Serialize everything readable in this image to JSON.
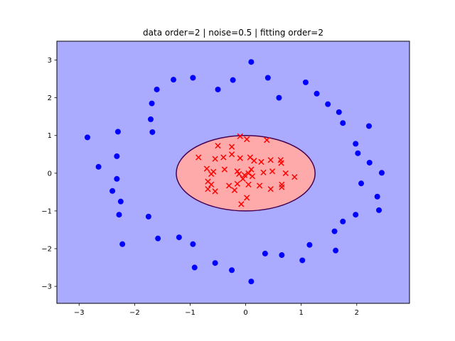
{
  "chart_data": {
    "type": "scatter",
    "title": "data order=2 | noise=0.5 | fitting order=2",
    "xlabel": "",
    "ylabel": "",
    "xlim": [
      -3.4,
      2.95
    ],
    "ylim": [
      -3.45,
      3.5
    ],
    "x_ticks": [
      -3,
      -2,
      -1,
      0,
      1,
      2
    ],
    "y_ticks": [
      -3,
      -2,
      -1,
      0,
      1,
      2,
      3
    ],
    "grid": false,
    "background_region_color": "#aaaaff",
    "decision_region": {
      "shape": "ellipse",
      "center": [
        0.0,
        0.0
      ],
      "semi_axes": [
        1.25,
        1.0
      ],
      "fill_color": "#ffaaaa",
      "edge_color": "#440154"
    },
    "series": [
      {
        "marker": "circle",
        "color": "#0000ff",
        "points": [
          [
            0.1,
            2.95
          ],
          [
            -0.95,
            2.53
          ],
          [
            0.4,
            2.53
          ],
          [
            -1.3,
            2.48
          ],
          [
            -0.23,
            2.47
          ],
          [
            1.08,
            2.41
          ],
          [
            -1.6,
            2.22
          ],
          [
            -0.5,
            2.22
          ],
          [
            1.28,
            2.11
          ],
          [
            0.6,
            2.0
          ],
          [
            1.48,
            1.83
          ],
          [
            -1.69,
            1.85
          ],
          [
            1.68,
            1.62
          ],
          [
            -1.71,
            1.43
          ],
          [
            1.75,
            1.33
          ],
          [
            2.22,
            1.25
          ],
          [
            -2.3,
            1.1
          ],
          [
            -1.68,
            1.09
          ],
          [
            -2.85,
            0.95
          ],
          [
            1.98,
            0.78
          ],
          [
            2.02,
            0.53
          ],
          [
            -2.32,
            0.45
          ],
          [
            2.23,
            0.28
          ],
          [
            -2.65,
            0.17
          ],
          [
            2.45,
            0.01
          ],
          [
            -2.32,
            -0.15
          ],
          [
            2.08,
            -0.27
          ],
          [
            -2.4,
            -0.47
          ],
          [
            2.37,
            -0.62
          ],
          [
            -2.25,
            -0.75
          ],
          [
            2.4,
            -0.98
          ],
          [
            -2.28,
            -1.1
          ],
          [
            1.98,
            -1.1
          ],
          [
            -1.75,
            -1.15
          ],
          [
            1.75,
            -1.28
          ],
          [
            1.6,
            -1.54
          ],
          [
            -1.2,
            -1.7
          ],
          [
            -1.58,
            -1.73
          ],
          [
            1.15,
            -1.9
          ],
          [
            -2.22,
            -1.88
          ],
          [
            -0.95,
            -1.88
          ],
          [
            1.62,
            -2.05
          ],
          [
            0.35,
            -2.13
          ],
          [
            0.65,
            -2.17
          ],
          [
            1.02,
            -2.31
          ],
          [
            -0.55,
            -2.38
          ],
          [
            -0.92,
            -2.5
          ],
          [
            -0.25,
            -2.57
          ],
          [
            0.1,
            -2.87
          ]
        ]
      },
      {
        "marker": "x",
        "color": "#ff0000",
        "points": [
          [
            -0.1,
            0.98
          ],
          [
            0.02,
            0.9
          ],
          [
            0.38,
            0.88
          ],
          [
            -0.5,
            0.73
          ],
          [
            -0.25,
            0.7
          ],
          [
            -0.4,
            0.42
          ],
          [
            -0.25,
            0.5
          ],
          [
            -0.85,
            0.42
          ],
          [
            -0.1,
            0.4
          ],
          [
            0.08,
            0.42
          ],
          [
            0.15,
            0.33
          ],
          [
            0.28,
            0.3
          ],
          [
            0.45,
            0.35
          ],
          [
            0.63,
            0.35
          ],
          [
            0.64,
            0.27
          ],
          [
            -0.55,
            0.38
          ],
          [
            -0.7,
            0.12
          ],
          [
            -0.58,
            0.04
          ],
          [
            -0.38,
            0.1
          ],
          [
            -0.15,
            0.05
          ],
          [
            0.1,
            0.1
          ],
          [
            0.32,
            0.02
          ],
          [
            0.48,
            0.05
          ],
          [
            0.72,
            0.0
          ],
          [
            0.88,
            -0.1
          ],
          [
            -0.62,
            -0.02
          ],
          [
            -0.12,
            -0.02
          ],
          [
            -0.02,
            -0.05
          ],
          [
            0.05,
            0.0
          ],
          [
            0.12,
            -0.08
          ],
          [
            -0.05,
            -0.15
          ],
          [
            -0.68,
            -0.22
          ],
          [
            -0.62,
            -0.3
          ],
          [
            -0.3,
            -0.33
          ],
          [
            -0.15,
            -0.28
          ],
          [
            0.05,
            -0.3
          ],
          [
            0.25,
            -0.33
          ],
          [
            0.45,
            -0.42
          ],
          [
            0.65,
            -0.3
          ],
          [
            0.65,
            -0.37
          ],
          [
            -0.68,
            -0.42
          ],
          [
            -0.55,
            -0.48
          ],
          [
            -0.2,
            -0.45
          ],
          [
            0.02,
            -0.65
          ],
          [
            -0.08,
            -0.82
          ]
        ]
      }
    ]
  }
}
